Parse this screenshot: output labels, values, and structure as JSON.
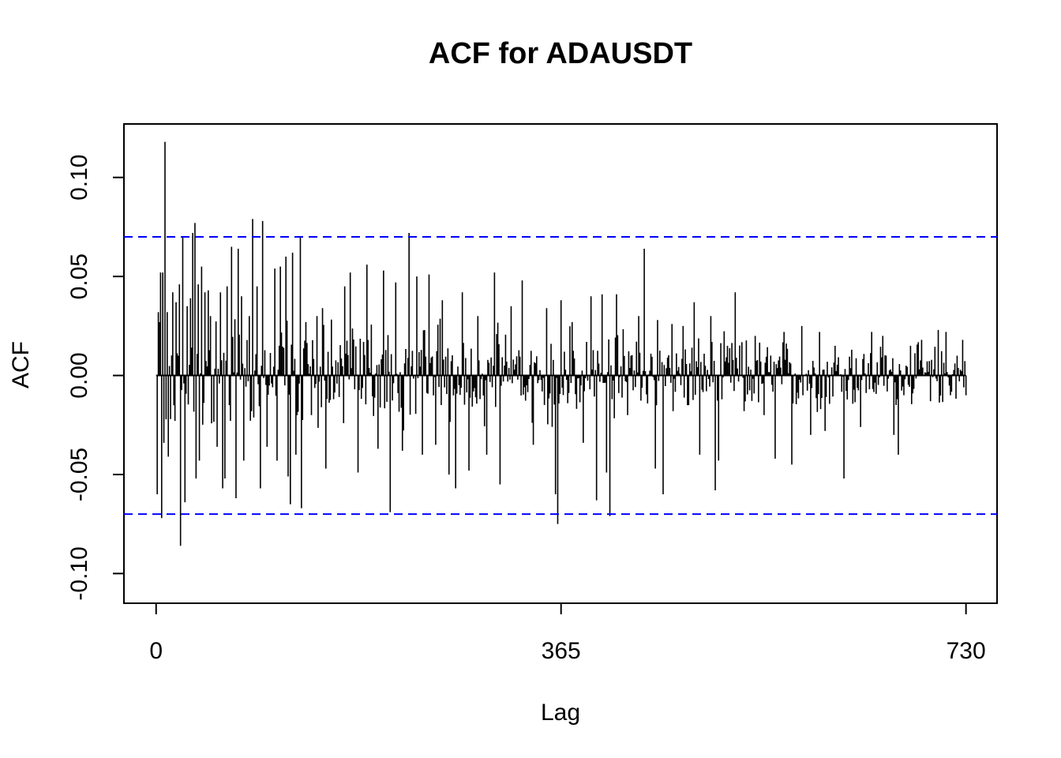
{
  "chart_data": {
    "type": "bar",
    "title": "ACF for ADAUSDT",
    "xlabel": "Lag",
    "ylabel": "ACF",
    "x_ticks": [
      0,
      365,
      730
    ],
    "x_tick_labels": [
      "0",
      "365",
      "730"
    ],
    "y_ticks": [
      -0.1,
      -0.05,
      0.0,
      0.05,
      0.1
    ],
    "y_tick_labels": [
      "-0.10",
      "-0.05",
      "0.00",
      "0.05",
      "0.10"
    ],
    "xlim": [
      -29,
      758
    ],
    "ylim": [
      -0.115,
      0.127
    ],
    "confidence_band": 0.07,
    "zero_line": 0,
    "grid": false,
    "legend": "none",
    "colors": {
      "bars": "#000000",
      "confidence": "#0000ff",
      "frame": "#000000"
    },
    "lag_range": [
      1,
      730
    ],
    "highlighted_lags": [
      {
        "lag": 1,
        "value": -0.06
      },
      {
        "lag": 2,
        "value": 0.032
      },
      {
        "lag": 4,
        "value": 0.052
      },
      {
        "lag": 5,
        "value": -0.072
      },
      {
        "lag": 6,
        "value": 0.052
      },
      {
        "lag": 7,
        "value": -0.034
      },
      {
        "lag": 8,
        "value": 0.118
      },
      {
        "lag": 10,
        "value": 0.032
      },
      {
        "lag": 11,
        "value": -0.041
      },
      {
        "lag": 13,
        "value": -0.022
      },
      {
        "lag": 15,
        "value": 0.042
      },
      {
        "lag": 16,
        "value": -0.015
      },
      {
        "lag": 18,
        "value": 0.037
      },
      {
        "lag": 21,
        "value": 0.046
      },
      {
        "lag": 22,
        "value": -0.086
      },
      {
        "lag": 24,
        "value": 0.07
      },
      {
        "lag": 26,
        "value": -0.064
      },
      {
        "lag": 28,
        "value": 0.035
      },
      {
        "lag": 31,
        "value": 0.039
      },
      {
        "lag": 33,
        "value": 0.072
      },
      {
        "lag": 35,
        "value": 0.077
      },
      {
        "lag": 36,
        "value": -0.052
      },
      {
        "lag": 38,
        "value": 0.046
      },
      {
        "lag": 39,
        "value": -0.043
      },
      {
        "lag": 41,
        "value": 0.055
      },
      {
        "lag": 44,
        "value": 0.042
      },
      {
        "lag": 47,
        "value": 0.043
      },
      {
        "lag": 49,
        "value": 0.03
      },
      {
        "lag": 55,
        "value": -0.036
      },
      {
        "lag": 58,
        "value": 0.042
      },
      {
        "lag": 60,
        "value": -0.057
      },
      {
        "lag": 62,
        "value": -0.052
      },
      {
        "lag": 64,
        "value": 0.045
      },
      {
        "lag": 68,
        "value": 0.065
      },
      {
        "lag": 72,
        "value": -0.062
      },
      {
        "lag": 74,
        "value": 0.064
      },
      {
        "lag": 77,
        "value": 0.04
      },
      {
        "lag": 79,
        "value": -0.043
      },
      {
        "lag": 84,
        "value": 0.03
      },
      {
        "lag": 87,
        "value": 0.079
      },
      {
        "lag": 91,
        "value": 0.045
      },
      {
        "lag": 94,
        "value": -0.057
      },
      {
        "lag": 96,
        "value": 0.078
      },
      {
        "lag": 100,
        "value": -0.036
      },
      {
        "lag": 107,
        "value": 0.054
      },
      {
        "lag": 109,
        "value": -0.043
      },
      {
        "lag": 112,
        "value": 0.055
      },
      {
        "lag": 117,
        "value": 0.06
      },
      {
        "lag": 119,
        "value": -0.051
      },
      {
        "lag": 121,
        "value": -0.065
      },
      {
        "lag": 123,
        "value": 0.062
      },
      {
        "lag": 126,
        "value": -0.04
      },
      {
        "lag": 130,
        "value": 0.07
      },
      {
        "lag": 131,
        "value": -0.067
      },
      {
        "lag": 135,
        "value": 0.027
      },
      {
        "lag": 140,
        "value": -0.02
      },
      {
        "lag": 145,
        "value": 0.03
      },
      {
        "lag": 150,
        "value": 0.034
      },
      {
        "lag": 153,
        "value": -0.047
      },
      {
        "lag": 160,
        "value": -0.012
      },
      {
        "lag": 170,
        "value": 0.045
      },
      {
        "lag": 175,
        "value": 0.052
      },
      {
        "lag": 182,
        "value": -0.049
      },
      {
        "lag": 190,
        "value": 0.056
      },
      {
        "lag": 200,
        "value": -0.037
      },
      {
        "lag": 205,
        "value": 0.053
      },
      {
        "lag": 211,
        "value": -0.069
      },
      {
        "lag": 216,
        "value": 0.047
      },
      {
        "lag": 222,
        "value": -0.038
      },
      {
        "lag": 228,
        "value": 0.072
      },
      {
        "lag": 235,
        "value": 0.05
      },
      {
        "lag": 240,
        "value": -0.04
      },
      {
        "lag": 246,
        "value": 0.051
      },
      {
        "lag": 252,
        "value": -0.035
      },
      {
        "lag": 258,
        "value": 0.038
      },
      {
        "lag": 264,
        "value": -0.05
      },
      {
        "lag": 270,
        "value": -0.057
      },
      {
        "lag": 276,
        "value": 0.042
      },
      {
        "lag": 282,
        "value": -0.048
      },
      {
        "lag": 290,
        "value": 0.03
      },
      {
        "lag": 298,
        "value": -0.04
      },
      {
        "lag": 305,
        "value": 0.052
      },
      {
        "lag": 310,
        "value": -0.055
      },
      {
        "lag": 320,
        "value": 0.035
      },
      {
        "lag": 330,
        "value": 0.048
      },
      {
        "lag": 340,
        "value": -0.035
      },
      {
        "lag": 352,
        "value": 0.034
      },
      {
        "lag": 360,
        "value": -0.06
      },
      {
        "lag": 362,
        "value": -0.075
      },
      {
        "lag": 365,
        "value": 0.038
      },
      {
        "lag": 375,
        "value": 0.027
      },
      {
        "lag": 385,
        "value": -0.034
      },
      {
        "lag": 392,
        "value": 0.04
      },
      {
        "lag": 397,
        "value": -0.063
      },
      {
        "lag": 402,
        "value": 0.041
      },
      {
        "lag": 406,
        "value": -0.049
      },
      {
        "lag": 409,
        "value": -0.071
      },
      {
        "lag": 415,
        "value": 0.041
      },
      {
        "lag": 425,
        "value": -0.02
      },
      {
        "lag": 435,
        "value": 0.03
      },
      {
        "lag": 440,
        "value": 0.064
      },
      {
        "lag": 450,
        "value": -0.047
      },
      {
        "lag": 452,
        "value": 0.028
      },
      {
        "lag": 457,
        "value": -0.06
      },
      {
        "lag": 465,
        "value": 0.026
      },
      {
        "lag": 475,
        "value": 0.025
      },
      {
        "lag": 485,
        "value": 0.037
      },
      {
        "lag": 490,
        "value": -0.04
      },
      {
        "lag": 500,
        "value": 0.03
      },
      {
        "lag": 504,
        "value": -0.058
      },
      {
        "lag": 507,
        "value": -0.043
      },
      {
        "lag": 515,
        "value": 0.015
      },
      {
        "lag": 522,
        "value": 0.042
      },
      {
        "lag": 530,
        "value": -0.018
      },
      {
        "lag": 540,
        "value": 0.02
      },
      {
        "lag": 548,
        "value": -0.02
      },
      {
        "lag": 558,
        "value": -0.042
      },
      {
        "lag": 566,
        "value": 0.022
      },
      {
        "lag": 573,
        "value": -0.045
      },
      {
        "lag": 582,
        "value": 0.025
      },
      {
        "lag": 590,
        "value": -0.03
      },
      {
        "lag": 598,
        "value": 0.022
      },
      {
        "lag": 603,
        "value": -0.028
      },
      {
        "lag": 612,
        "value": 0.015
      },
      {
        "lag": 620,
        "value": -0.052
      },
      {
        "lag": 627,
        "value": 0.013
      },
      {
        "lag": 635,
        "value": -0.026
      },
      {
        "lag": 645,
        "value": 0.022
      },
      {
        "lag": 655,
        "value": 0.02
      },
      {
        "lag": 665,
        "value": -0.03
      },
      {
        "lag": 669,
        "value": -0.04
      },
      {
        "lag": 680,
        "value": 0.015
      },
      {
        "lag": 690,
        "value": 0.018
      },
      {
        "lag": 698,
        "value": -0.013
      },
      {
        "lag": 705,
        "value": 0.023
      },
      {
        "lag": 712,
        "value": 0.022
      },
      {
        "lag": 722,
        "value": 0.01
      },
      {
        "lag": 727,
        "value": 0.018
      },
      {
        "lag": 730,
        "value": -0.01
      }
    ]
  }
}
